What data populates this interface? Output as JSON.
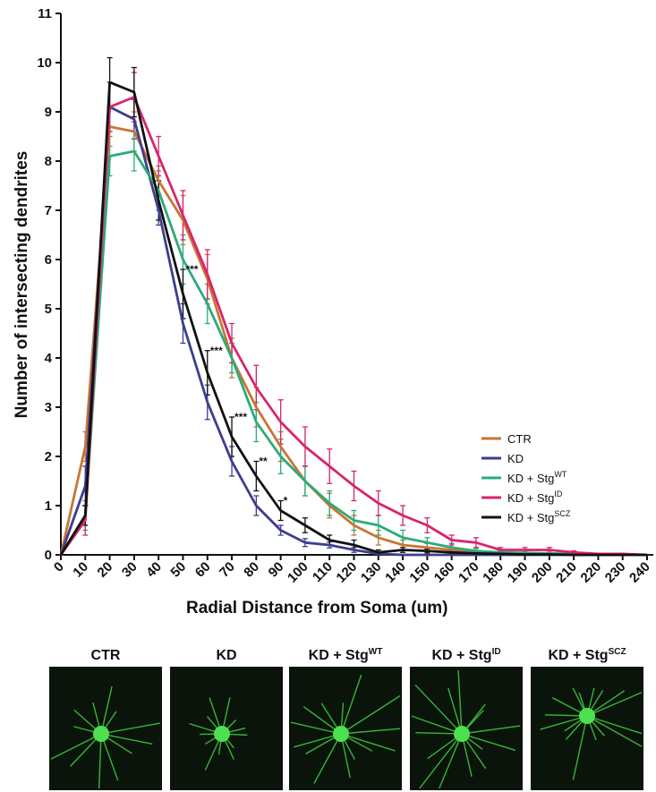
{
  "chart_data": {
    "type": "line",
    "xlabel": "Radial Distance from Soma  (um)",
    "ylabel": "Number of intersecting dendrites",
    "x": [
      0,
      10,
      20,
      30,
      40,
      50,
      60,
      70,
      80,
      90,
      100,
      110,
      120,
      130,
      140,
      150,
      160,
      170,
      180,
      190,
      200,
      210,
      220,
      230,
      240
    ],
    "xlim": [
      0,
      240
    ],
    "ylim": [
      0,
      11
    ],
    "xticks": [
      0,
      10,
      20,
      30,
      40,
      50,
      60,
      70,
      80,
      90,
      100,
      110,
      120,
      130,
      140,
      150,
      160,
      170,
      180,
      190,
      200,
      210,
      220,
      230,
      240
    ],
    "yticks": [
      0,
      1,
      2,
      3,
      4,
      5,
      6,
      7,
      8,
      9,
      10,
      11
    ],
    "legend": "lower right",
    "series": [
      {
        "name": "CTR",
        "color": "#c87533",
        "values": [
          0,
          2.2,
          8.7,
          8.6,
          7.6,
          6.8,
          5.6,
          4.0,
          3.0,
          2.2,
          1.5,
          1.0,
          0.6,
          0.35,
          0.2,
          0.15,
          0.1,
          0.05,
          0.05,
          0.03,
          0.02,
          0.01,
          0,
          0,
          0
        ],
        "errors": [
          0,
          0.3,
          0.4,
          0.4,
          0.3,
          0.5,
          0.5,
          0.4,
          0.4,
          0.3,
          0.3,
          0.25,
          0.2,
          0.15,
          0.1,
          0.08,
          0.05,
          0.03,
          0.03,
          0.02,
          0.02,
          0.01,
          0,
          0,
          0
        ]
      },
      {
        "name": "KD",
        "color": "#3d3d8f",
        "values": [
          0,
          1.4,
          9.1,
          8.85,
          7.0,
          4.7,
          3.1,
          1.9,
          1.0,
          0.5,
          0.25,
          0.2,
          0.1,
          0.02,
          0,
          0,
          0,
          0,
          0,
          0,
          0,
          0,
          0,
          0,
          0
        ],
        "errors": [
          0,
          0.4,
          0.5,
          0.4,
          0.3,
          0.4,
          0.35,
          0.3,
          0.2,
          0.1,
          0.08,
          0.06,
          0.05,
          0.02,
          0,
          0,
          0,
          0,
          0,
          0,
          0,
          0,
          0,
          0,
          0
        ]
      },
      {
        "name": "KD + Stg",
        "superscript": "WT",
        "color": "#2bab7a",
        "values": [
          0,
          0.8,
          8.1,
          8.2,
          7.4,
          6.0,
          5.1,
          4.0,
          2.7,
          2.0,
          1.5,
          1.05,
          0.7,
          0.6,
          0.35,
          0.25,
          0.15,
          0.08,
          0.05,
          0.04,
          0.03,
          0.02,
          0.01,
          0,
          0
        ],
        "errors": [
          0,
          0.3,
          0.4,
          0.4,
          0.4,
          0.5,
          0.4,
          0.3,
          0.4,
          0.35,
          0.3,
          0.25,
          0.2,
          0.2,
          0.15,
          0.1,
          0.08,
          0.05,
          0.03,
          0.02,
          0.02,
          0.01,
          0.01,
          0,
          0
        ]
      },
      {
        "name": "KD + Stg",
        "superscript": "ID",
        "color": "#d8246e",
        "values": [
          0,
          0.7,
          9.1,
          9.3,
          8.1,
          6.9,
          5.7,
          4.3,
          3.4,
          2.7,
          2.2,
          1.8,
          1.4,
          1.05,
          0.8,
          0.6,
          0.3,
          0.25,
          0.1,
          0.1,
          0.1,
          0.05,
          0.02,
          0.02,
          0
        ],
        "errors": [
          0,
          0.3,
          0.5,
          0.5,
          0.4,
          0.5,
          0.5,
          0.4,
          0.45,
          0.45,
          0.4,
          0.35,
          0.3,
          0.25,
          0.2,
          0.15,
          0.1,
          0.1,
          0.05,
          0.05,
          0.05,
          0.03,
          0.01,
          0.01,
          0
        ]
      },
      {
        "name": "KD + Stg",
        "superscript": "SCZ",
        "color": "#111111",
        "values": [
          0,
          0.8,
          9.6,
          9.4,
          7.2,
          5.3,
          3.7,
          2.4,
          1.6,
          0.9,
          0.6,
          0.3,
          0.2,
          0.05,
          0.1,
          0.08,
          0.05,
          0.03,
          0.02,
          0.01,
          0.01,
          0,
          0,
          0,
          0
        ],
        "errors": [
          0,
          0.2,
          0.5,
          0.5,
          0.4,
          0.5,
          0.45,
          0.4,
          0.3,
          0.2,
          0.15,
          0.1,
          0.1,
          0.05,
          0.05,
          0.04,
          0.03,
          0.02,
          0.01,
          0.01,
          0.01,
          0,
          0,
          0,
          0
        ]
      }
    ],
    "annotations": [
      {
        "x": 50,
        "text": "***"
      },
      {
        "x": 60,
        "text": "***"
      },
      {
        "x": 70,
        "text": "***"
      },
      {
        "x": 80,
        "text": "**"
      },
      {
        "x": 90,
        "text": "*"
      }
    ]
  },
  "panels": [
    {
      "label": "CTR"
    },
    {
      "label": "KD"
    },
    {
      "label": "KD + Stg",
      "superscript": "WT"
    },
    {
      "label": "KD + Stg",
      "superscript": "ID"
    },
    {
      "label": "KD + Stg",
      "superscript": "SCZ"
    }
  ]
}
